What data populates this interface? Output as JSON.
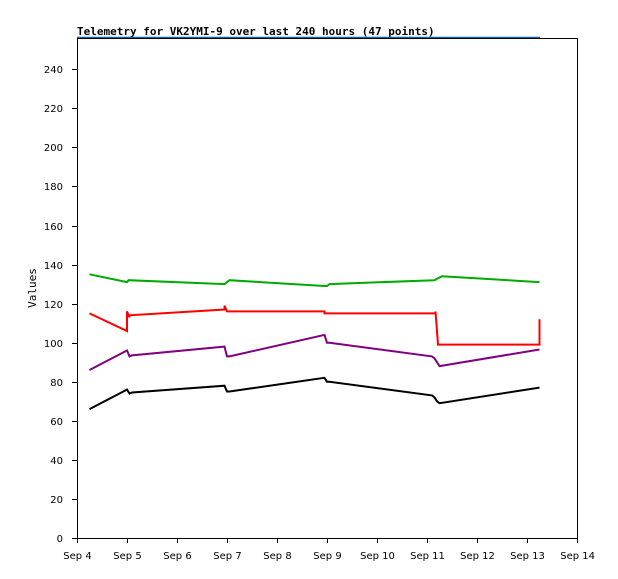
{
  "chart_data": {
    "type": "line",
    "title": "Telemetry for VK2YMI-9 over last 240 hours (47 points)",
    "xlabel": "",
    "ylabel": "Values",
    "ylim": [
      0,
      256
    ],
    "xlim": [
      4.0,
      14.0
    ],
    "x_tick_values": [
      4,
      5,
      6,
      7,
      8,
      9,
      10,
      11,
      12,
      13,
      14
    ],
    "x_tick_labels": [
      "Sep 4",
      "Sep 5",
      "Sep 6",
      "Sep 7",
      "Sep 8",
      "Sep 9",
      "Sep 10",
      "Sep 11",
      "Sep 12",
      "Sep 13",
      "Sep 14"
    ],
    "y_ticks": [
      0,
      20,
      40,
      60,
      80,
      100,
      120,
      140,
      160,
      180,
      200,
      220,
      240
    ],
    "grid": false,
    "legend": "none",
    "series": [
      {
        "color": "#00aa00",
        "x": [
          4.25,
          5.0,
          5.03,
          6.95,
          7.0,
          7.05,
          8.95,
          9.0,
          9.05,
          11.15,
          11.22,
          11.3,
          13.25
        ],
        "y": [
          135,
          131,
          132,
          130,
          131,
          132,
          129,
          129,
          130,
          132,
          133,
          134,
          131
        ]
      },
      {
        "color": "#ff0000",
        "x": [
          4.25,
          5.0,
          5.0,
          5.05,
          5.05,
          6.95,
          6.95,
          7.0,
          7.0,
          8.95,
          8.95,
          9.0,
          11.17,
          11.17,
          11.22,
          11.22,
          13.25,
          13.25
        ],
        "y": [
          115,
          106,
          116,
          113,
          114,
          117,
          119,
          116,
          116,
          116,
          115,
          115,
          115,
          116,
          99,
          99,
          99,
          112
        ]
      },
      {
        "color": "#800080",
        "x": [
          4.25,
          5.0,
          5.05,
          5.1,
          6.95,
          7.0,
          7.05,
          8.95,
          9.0,
          9.05,
          11.1,
          11.15,
          11.2,
          11.25,
          13.25
        ],
        "y": [
          86,
          96,
          93,
          93.5,
          98,
          93,
          93,
          104,
          100,
          100,
          93,
          92,
          90,
          88,
          96.5
        ]
      },
      {
        "color": "#000000",
        "x": [
          4.25,
          5.0,
          5.05,
          5.1,
          6.95,
          7.0,
          7.05,
          8.95,
          9.0,
          9.05,
          11.1,
          11.15,
          11.2,
          11.25,
          13.25
        ],
        "y": [
          66,
          76,
          74,
          74.5,
          78,
          75,
          75,
          82,
          80,
          80,
          73,
          72,
          70,
          69,
          77
        ]
      }
    ],
    "top_line_color": "#1060b0"
  }
}
